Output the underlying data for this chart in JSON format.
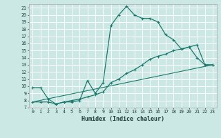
{
  "title": "",
  "xlabel": "Humidex (Indice chaleur)",
  "bg_color": "#cce8e4",
  "grid_color": "#ffffff",
  "line_color": "#1a7a6e",
  "xlim": [
    -0.5,
    23.5
  ],
  "ylim": [
    7,
    21.5
  ],
  "xticks": [
    0,
    1,
    2,
    3,
    4,
    5,
    6,
    7,
    8,
    9,
    10,
    11,
    12,
    13,
    14,
    15,
    16,
    17,
    18,
    19,
    20,
    21,
    22,
    23
  ],
  "yticks": [
    7,
    8,
    9,
    10,
    11,
    12,
    13,
    14,
    15,
    16,
    17,
    18,
    19,
    20,
    21
  ],
  "line1_x": [
    0,
    1,
    2,
    3,
    4,
    5,
    6,
    7,
    8,
    9,
    10,
    11,
    12,
    13,
    14,
    15,
    16,
    17,
    18,
    19,
    20,
    21,
    22,
    23
  ],
  "line1_y": [
    9.8,
    9.8,
    8.2,
    7.5,
    7.8,
    7.8,
    8.0,
    10.8,
    9.0,
    10.5,
    18.5,
    20.0,
    21.2,
    20.0,
    19.5,
    19.5,
    19.0,
    17.2,
    16.5,
    15.2,
    15.5,
    14.0,
    13.0,
    13.0
  ],
  "line2_x": [
    0,
    1,
    2,
    3,
    4,
    5,
    6,
    7,
    8,
    9,
    10,
    11,
    12,
    13,
    14,
    15,
    16,
    17,
    18,
    19,
    20,
    21,
    22,
    23
  ],
  "line2_y": [
    7.8,
    7.8,
    7.8,
    7.5,
    7.8,
    8.0,
    8.2,
    8.5,
    8.8,
    9.2,
    10.5,
    11.0,
    11.8,
    12.3,
    13.0,
    13.8,
    14.2,
    14.5,
    15.0,
    15.2,
    15.5,
    15.8,
    13.0,
    13.0
  ],
  "line3_x": [
    0,
    23
  ],
  "line3_y": [
    7.8,
    13.0
  ],
  "marker": "+"
}
